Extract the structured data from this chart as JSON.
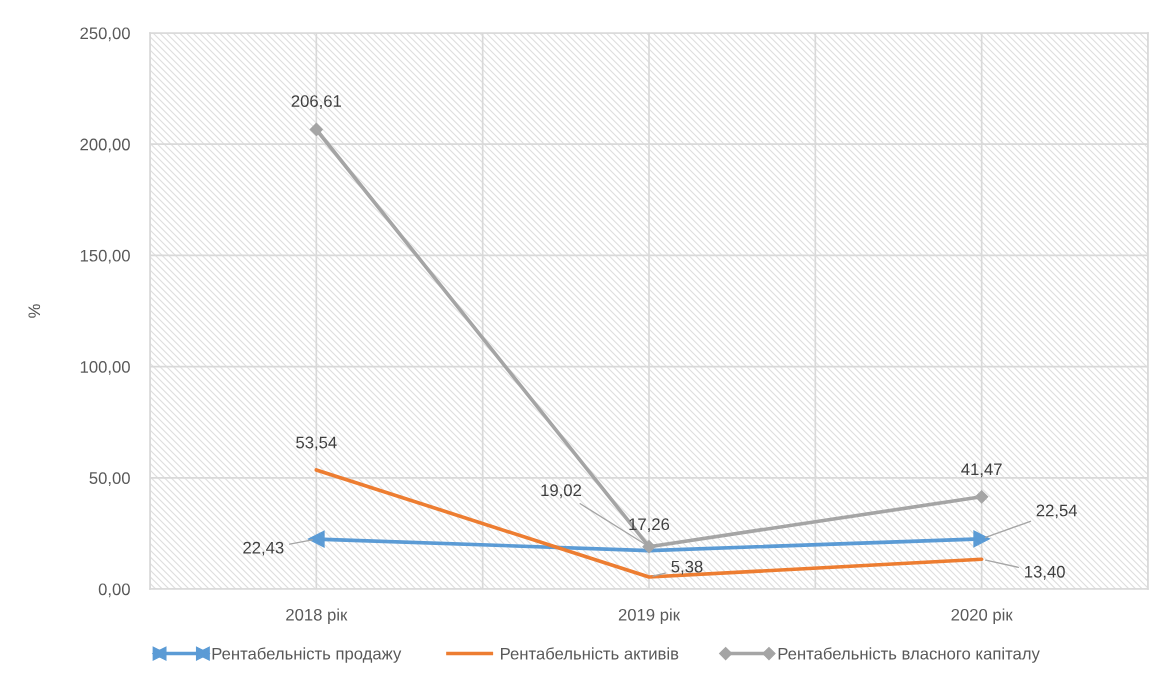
{
  "chart_data": {
    "type": "line",
    "ylabel": "%",
    "categories": [
      "2018 рік",
      "2019 рік",
      "2020 рік"
    ],
    "series": [
      {
        "name": "Рентабельність продажу",
        "color": "#5b9bd5",
        "values": [
          22.43,
          17.26,
          22.54
        ],
        "value_labels": [
          "22,43",
          "17,26",
          "22,54"
        ],
        "marker": "triangle"
      },
      {
        "name": "Рентабельність активів",
        "color": "#ed7d31",
        "values": [
          53.54,
          5.38,
          13.4
        ],
        "value_labels": [
          "53,54",
          "5,38",
          "13,40"
        ]
      },
      {
        "name": "Рентабельність власного капіталу",
        "color": "#a5a5a5",
        "values": [
          206.61,
          19.02,
          41.47
        ],
        "value_labels": [
          "206,61",
          "19,02",
          "41,47"
        ],
        "marker": "diamond"
      }
    ],
    "ylim": [
      0,
      250
    ],
    "yticks": [
      {
        "value": 0,
        "label": "0,00"
      },
      {
        "value": 50,
        "label": "50,00"
      },
      {
        "value": 100,
        "label": "100,00"
      },
      {
        "value": 150,
        "label": "150,00"
      },
      {
        "value": 200,
        "label": "200,00"
      },
      {
        "value": 250,
        "label": "250,00"
      }
    ],
    "grid": true,
    "legend": "bottom",
    "line_style": "solid"
  }
}
